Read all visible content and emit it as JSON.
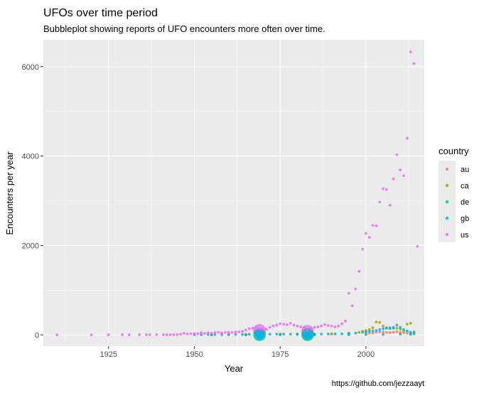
{
  "chart_data": {
    "type": "scatter",
    "title": "UFOs over time period",
    "subtitle": "Bubbleplot showing reports of UFO encounters more often over time.",
    "xlabel": "Year",
    "ylabel": "Encounters per year",
    "caption": "https://github.com/jezzaayt",
    "xlim": [
      1906,
      2017
    ],
    "ylim": [
      -250,
      6600
    ],
    "x_ticks": [
      1925,
      1950,
      1975,
      2000
    ],
    "y_ticks": [
      0,
      2000,
      4000,
      6000
    ],
    "grid": true,
    "legend": {
      "title": "country",
      "position": "right"
    },
    "series": [
      {
        "name": "au",
        "color": "#F8766D",
        "points": [
          [
            1955,
            5
          ],
          [
            1960,
            8
          ],
          [
            1965,
            10
          ],
          [
            1970,
            12
          ],
          [
            1975,
            15
          ],
          [
            1980,
            15
          ],
          [
            1985,
            15
          ],
          [
            1990,
            20
          ],
          [
            1995,
            25
          ],
          [
            2000,
            35
          ],
          [
            2001,
            40
          ],
          [
            2002,
            45
          ],
          [
            2003,
            60
          ],
          [
            2004,
            70
          ],
          [
            2005,
            65
          ],
          [
            2006,
            55
          ],
          [
            2007,
            50
          ],
          [
            2008,
            60
          ],
          [
            2009,
            70
          ],
          [
            2010,
            60
          ],
          [
            2011,
            50
          ],
          [
            2012,
            40
          ],
          [
            2013,
            35
          ],
          [
            2014,
            20
          ]
        ]
      },
      {
        "name": "ca",
        "color": "#A3A500",
        "points": [
          [
            1955,
            5
          ],
          [
            1960,
            8
          ],
          [
            1965,
            10
          ],
          [
            1970,
            15
          ],
          [
            1975,
            18
          ],
          [
            1980,
            20
          ],
          [
            1985,
            20
          ],
          [
            1990,
            25
          ],
          [
            1995,
            40
          ],
          [
            1998,
            60
          ],
          [
            1999,
            80
          ],
          [
            2000,
            100
          ],
          [
            2001,
            120
          ],
          [
            2002,
            160
          ],
          [
            2003,
            290
          ],
          [
            2004,
            280
          ],
          [
            2005,
            200
          ],
          [
            2006,
            160
          ],
          [
            2007,
            140
          ],
          [
            2008,
            170
          ],
          [
            2009,
            150
          ],
          [
            2010,
            130
          ],
          [
            2011,
            90
          ],
          [
            2012,
            240
          ],
          [
            2013,
            260
          ],
          [
            2014,
            70
          ]
        ]
      },
      {
        "name": "de",
        "color": "#00BF7D",
        "points": [
          [
            1955,
            2
          ],
          [
            1965,
            3
          ],
          [
            1975,
            4
          ],
          [
            1985,
            5
          ],
          [
            1995,
            6
          ],
          [
            2000,
            8
          ],
          [
            2005,
            12
          ],
          [
            2010,
            18
          ],
          [
            2013,
            12
          ]
        ]
      },
      {
        "name": "gb",
        "color": "#00B0F6",
        "points": [
          [
            1950,
            5
          ],
          [
            1952,
            6
          ],
          [
            1954,
            8
          ],
          [
            1956,
            8
          ],
          [
            1958,
            10
          ],
          [
            1960,
            10
          ],
          [
            1962,
            12
          ],
          [
            1964,
            12
          ],
          [
            1966,
            14
          ],
          [
            1968,
            15
          ],
          [
            1969,
            15
          ],
          [
            1970,
            15
          ],
          [
            1972,
            16
          ],
          [
            1974,
            18
          ],
          [
            1976,
            18
          ],
          [
            1978,
            16
          ],
          [
            1980,
            15
          ],
          [
            1983,
            15
          ],
          [
            1985,
            16
          ],
          [
            1987,
            18
          ],
          [
            1989,
            20
          ],
          [
            1991,
            22
          ],
          [
            1993,
            25
          ],
          [
            1995,
            30
          ],
          [
            1997,
            40
          ],
          [
            1999,
            60
          ],
          [
            2000,
            70
          ],
          [
            2001,
            80
          ],
          [
            2002,
            90
          ],
          [
            2003,
            100
          ],
          [
            2004,
            120
          ],
          [
            2005,
            140
          ],
          [
            2006,
            150
          ],
          [
            2007,
            160
          ],
          [
            2008,
            150
          ],
          [
            2009,
            220
          ],
          [
            2010,
            170
          ],
          [
            2011,
            120
          ],
          [
            2012,
            90
          ],
          [
            2013,
            60
          ],
          [
            2014,
            40
          ]
        ]
      },
      {
        "name": "us",
        "color": "#E76BF3",
        "points": [
          [
            1910,
            2
          ],
          [
            1920,
            2
          ],
          [
            1925,
            3
          ],
          [
            1929,
            3
          ],
          [
            1931,
            3
          ],
          [
            1934,
            3
          ],
          [
            1936,
            4
          ],
          [
            1937,
            4
          ],
          [
            1939,
            4
          ],
          [
            1941,
            5
          ],
          [
            1942,
            5
          ],
          [
            1943,
            6
          ],
          [
            1944,
            8
          ],
          [
            1945,
            10
          ],
          [
            1946,
            15
          ],
          [
            1947,
            35
          ],
          [
            1948,
            20
          ],
          [
            1949,
            25
          ],
          [
            1950,
            30
          ],
          [
            1951,
            25
          ],
          [
            1952,
            50
          ],
          [
            1953,
            35
          ],
          [
            1954,
            45
          ],
          [
            1955,
            40
          ],
          [
            1956,
            50
          ],
          [
            1957,
            60
          ],
          [
            1958,
            45
          ],
          [
            1959,
            55
          ],
          [
            1960,
            60
          ],
          [
            1961,
            55
          ],
          [
            1962,
            65
          ],
          [
            1963,
            70
          ],
          [
            1964,
            80
          ],
          [
            1965,
            110
          ],
          [
            1966,
            140
          ],
          [
            1967,
            150
          ],
          [
            1968,
            170
          ],
          [
            1969,
            130
          ],
          [
            1970,
            120
          ],
          [
            1971,
            130
          ],
          [
            1972,
            170
          ],
          [
            1973,
            200
          ],
          [
            1974,
            220
          ],
          [
            1975,
            250
          ],
          [
            1976,
            240
          ],
          [
            1977,
            230
          ],
          [
            1978,
            260
          ],
          [
            1979,
            220
          ],
          [
            1980,
            200
          ],
          [
            1981,
            180
          ],
          [
            1982,
            170
          ],
          [
            1983,
            100
          ],
          [
            1984,
            150
          ],
          [
            1985,
            170
          ],
          [
            1986,
            180
          ],
          [
            1987,
            200
          ],
          [
            1988,
            230
          ],
          [
            1989,
            210
          ],
          [
            1990,
            200
          ],
          [
            1991,
            180
          ],
          [
            1992,
            200
          ],
          [
            1993,
            250
          ],
          [
            1994,
            310
          ],
          [
            1995,
            930
          ],
          [
            1996,
            650
          ],
          [
            1997,
            1030
          ],
          [
            1998,
            1420
          ],
          [
            1999,
            1920
          ],
          [
            2000,
            2270
          ],
          [
            2001,
            2180
          ],
          [
            2002,
            2450
          ],
          [
            2003,
            2440
          ],
          [
            2004,
            2970
          ],
          [
            2005,
            3270
          ],
          [
            2006,
            3250
          ],
          [
            2007,
            2900
          ],
          [
            2008,
            3490
          ],
          [
            2009,
            4030
          ],
          [
            2010,
            3690
          ],
          [
            2011,
            3560
          ],
          [
            2012,
            4400
          ],
          [
            2013,
            6330
          ],
          [
            2014,
            6070
          ],
          [
            2015,
            1980
          ]
        ]
      }
    ],
    "bubbles": [
      {
        "series": "us",
        "x": 1969,
        "y": 100,
        "size": "large"
      },
      {
        "series": "us",
        "x": 1983,
        "y": 80,
        "size": "large"
      },
      {
        "series": "de",
        "x": 1969,
        "y": 5,
        "size": "large"
      },
      {
        "series": "de",
        "x": 1983,
        "y": 5,
        "size": "large"
      },
      {
        "series": "gb",
        "x": 1969,
        "y": 5,
        "size": "medium"
      },
      {
        "series": "gb",
        "x": 1983,
        "y": 5,
        "size": "medium"
      }
    ]
  }
}
